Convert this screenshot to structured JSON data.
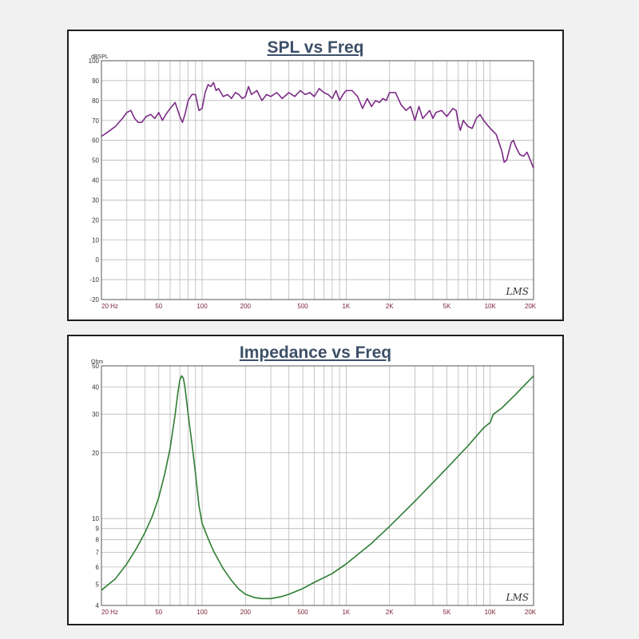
{
  "colors": {
    "background": "#f1f1f1",
    "panel": "#ffffff",
    "title": "#3d5068",
    "grid": "#b9b9b9",
    "axis_text": "#7a1f35",
    "spl_curve": "#7b2b86",
    "impedance_curve": "#2e7d32"
  },
  "chart_data": [
    {
      "type": "line",
      "title": "SPL vs Freq",
      "ylabel": "dBSPL",
      "xlabel": "",
      "x_scale": "log",
      "xlim": [
        20,
        20000
      ],
      "ylim": [
        -20,
        100
      ],
      "x_ticks": [
        {
          "v": 20,
          "label": "20 Hz"
        },
        {
          "v": 50,
          "label": "50"
        },
        {
          "v": 100,
          "label": "100"
        },
        {
          "v": 200,
          "label": "200"
        },
        {
          "v": 500,
          "label": "500"
        },
        {
          "v": 1000,
          "label": "1K"
        },
        {
          "v": 2000,
          "label": "2K"
        },
        {
          "v": 5000,
          "label": "5K"
        },
        {
          "v": 10000,
          "label": "10K"
        },
        {
          "v": 20000,
          "label": "20K"
        }
      ],
      "y_ticks": [
        {
          "v": 100,
          "label": "100"
        },
        {
          "v": 90,
          "label": "90"
        },
        {
          "v": 80,
          "label": "80"
        },
        {
          "v": 70,
          "label": "70"
        },
        {
          "v": 60,
          "label": "60"
        },
        {
          "v": 50,
          "label": "50"
        },
        {
          "v": 40,
          "label": "40"
        },
        {
          "v": 30,
          "label": "30"
        },
        {
          "v": 20,
          "label": "20"
        },
        {
          "v": 10,
          "label": "10"
        },
        {
          "v": 0,
          "label": "0"
        },
        {
          "v": -10,
          "label": "-10"
        },
        {
          "v": -20,
          "label": "-20"
        }
      ],
      "grid": true,
      "watermark": "LMS",
      "series": [
        {
          "points": [
            [
              20,
              62
            ],
            [
              22,
              64
            ],
            [
              25,
              67
            ],
            [
              28,
              71
            ],
            [
              30,
              74
            ],
            [
              32,
              75
            ],
            [
              34,
              71
            ],
            [
              36,
              69
            ],
            [
              38,
              69
            ],
            [
              41,
              72
            ],
            [
              44,
              73
            ],
            [
              47,
              71
            ],
            [
              50,
              74
            ],
            [
              53,
              70
            ],
            [
              56,
              73
            ],
            [
              60,
              76
            ],
            [
              65,
              79
            ],
            [
              70,
              72
            ],
            [
              73,
              69
            ],
            [
              76,
              73
            ],
            [
              80,
              80
            ],
            [
              85,
              83
            ],
            [
              90,
              83
            ],
            [
              95,
              75
            ],
            [
              100,
              76
            ],
            [
              105,
              84
            ],
            [
              110,
              88
            ],
            [
              115,
              87
            ],
            [
              120,
              89
            ],
            [
              125,
              85
            ],
            [
              130,
              86
            ],
            [
              140,
              82
            ],
            [
              150,
              83
            ],
            [
              160,
              81
            ],
            [
              170,
              84
            ],
            [
              180,
              83
            ],
            [
              190,
              81
            ],
            [
              200,
              82
            ],
            [
              210,
              87
            ],
            [
              220,
              83
            ],
            [
              240,
              85
            ],
            [
              260,
              80
            ],
            [
              280,
              83
            ],
            [
              300,
              82
            ],
            [
              330,
              84
            ],
            [
              360,
              81
            ],
            [
              400,
              84
            ],
            [
              440,
              82
            ],
            [
              480,
              85
            ],
            [
              520,
              83
            ],
            [
              560,
              84
            ],
            [
              600,
              82
            ],
            [
              650,
              86
            ],
            [
              700,
              84
            ],
            [
              750,
              83
            ],
            [
              800,
              81
            ],
            [
              850,
              85
            ],
            [
              900,
              80
            ],
            [
              950,
              83
            ],
            [
              1000,
              85
            ],
            [
              1100,
              85
            ],
            [
              1200,
              82
            ],
            [
              1300,
              76
            ],
            [
              1400,
              81
            ],
            [
              1500,
              77
            ],
            [
              1600,
              80
            ],
            [
              1700,
              79
            ],
            [
              1800,
              81
            ],
            [
              1900,
              80
            ],
            [
              2000,
              84
            ],
            [
              2200,
              84
            ],
            [
              2400,
              78
            ],
            [
              2600,
              75
            ],
            [
              2800,
              77
            ],
            [
              3000,
              70
            ],
            [
              3200,
              77
            ],
            [
              3400,
              71
            ],
            [
              3600,
              73
            ],
            [
              3800,
              75
            ],
            [
              4000,
              71
            ],
            [
              4200,
              74
            ],
            [
              4600,
              75
            ],
            [
              5000,
              72
            ],
            [
              5500,
              76
            ],
            [
              5800,
              75
            ],
            [
              6000,
              69
            ],
            [
              6200,
              65
            ],
            [
              6500,
              70
            ],
            [
              7000,
              67
            ],
            [
              7500,
              66
            ],
            [
              8000,
              71
            ],
            [
              8500,
              73
            ],
            [
              9000,
              70
            ],
            [
              10000,
              66
            ],
            [
              11000,
              63
            ],
            [
              12000,
              55
            ],
            [
              12500,
              49
            ],
            [
              13000,
              50
            ],
            [
              14000,
              59
            ],
            [
              14500,
              60
            ],
            [
              15000,
              57
            ],
            [
              16000,
              53
            ],
            [
              17000,
              52
            ],
            [
              18000,
              54
            ],
            [
              19000,
              50
            ],
            [
              20000,
              46
            ]
          ]
        }
      ]
    },
    {
      "type": "line",
      "title": "Impedance vs Freq",
      "ylabel": "Ohm",
      "xlabel": "",
      "x_scale": "log",
      "y_scale": "log",
      "xlim": [
        20,
        20000
      ],
      "ylim": [
        4,
        50
      ],
      "x_ticks": [
        {
          "v": 20,
          "label": "20 Hz"
        },
        {
          "v": 50,
          "label": "50"
        },
        {
          "v": 100,
          "label": "100"
        },
        {
          "v": 200,
          "label": "200"
        },
        {
          "v": 500,
          "label": "500"
        },
        {
          "v": 1000,
          "label": "1K"
        },
        {
          "v": 2000,
          "label": "2K"
        },
        {
          "v": 5000,
          "label": "5K"
        },
        {
          "v": 10000,
          "label": "10K"
        },
        {
          "v": 20000,
          "label": "20K"
        }
      ],
      "y_ticks": [
        {
          "v": 50,
          "label": "50"
        },
        {
          "v": 40,
          "label": "40"
        },
        {
          "v": 30,
          "label": "30"
        },
        {
          "v": 20,
          "label": "20"
        },
        {
          "v": 10,
          "label": "10"
        },
        {
          "v": 9,
          "label": "9"
        },
        {
          "v": 8,
          "label": "8"
        },
        {
          "v": 7,
          "label": "7"
        },
        {
          "v": 6,
          "label": "6"
        },
        {
          "v": 5,
          "label": "5"
        },
        {
          "v": 4,
          "label": "4"
        }
      ],
      "grid": true,
      "watermark": "LMS",
      "series": [
        {
          "points": [
            [
              20,
              4.7
            ],
            [
              25,
              5.3
            ],
            [
              30,
              6.2
            ],
            [
              35,
              7.3
            ],
            [
              40,
              8.6
            ],
            [
              45,
              10.2
            ],
            [
              50,
              12.5
            ],
            [
              55,
              16
            ],
            [
              60,
              21
            ],
            [
              65,
              30
            ],
            [
              68,
              38
            ],
            [
              70,
              43
            ],
            [
              72,
              45
            ],
            [
              74,
              44
            ],
            [
              76,
              40
            ],
            [
              80,
              30
            ],
            [
              85,
              22
            ],
            [
              90,
              16
            ],
            [
              95,
              11.5
            ],
            [
              100,
              9.5
            ],
            [
              110,
              8.1
            ],
            [
              120,
              7.1
            ],
            [
              140,
              5.9
            ],
            [
              160,
              5.2
            ],
            [
              180,
              4.75
            ],
            [
              200,
              4.5
            ],
            [
              230,
              4.35
            ],
            [
              260,
              4.3
            ],
            [
              300,
              4.3
            ],
            [
              350,
              4.38
            ],
            [
              400,
              4.5
            ],
            [
              500,
              4.78
            ],
            [
              600,
              5.1
            ],
            [
              800,
              5.6
            ],
            [
              1000,
              6.2
            ],
            [
              1500,
              7.7
            ],
            [
              2000,
              9.2
            ],
            [
              3000,
              12
            ],
            [
              5000,
              17
            ],
            [
              7000,
              21.5
            ],
            [
              9000,
              26
            ],
            [
              10000,
              27.5
            ],
            [
              10500,
              30
            ],
            [
              12000,
              32
            ],
            [
              15000,
              37
            ],
            [
              20000,
              45
            ]
          ]
        }
      ]
    }
  ]
}
